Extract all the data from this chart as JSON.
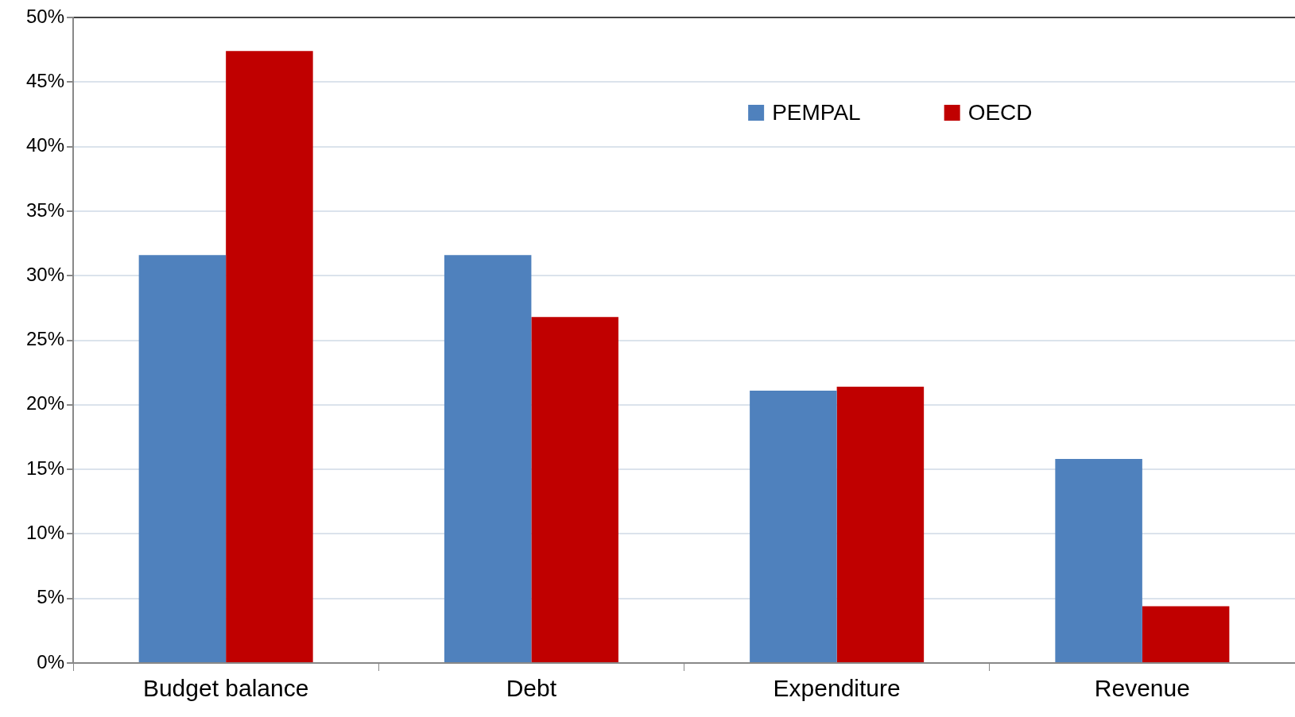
{
  "chart_data": {
    "type": "bar",
    "categories": [
      "Budget balance",
      "Debt",
      "Expenditure",
      "Revenue"
    ],
    "series": [
      {
        "name": "PEMPAL",
        "color": "#4f81bd",
        "values": [
          31.6,
          31.6,
          21.1,
          15.8
        ]
      },
      {
        "name": "OECD",
        "color": "#c00000",
        "values": [
          47.4,
          26.8,
          21.4,
          4.4
        ]
      }
    ],
    "ylim": [
      0,
      50
    ],
    "yticks": [
      {
        "value": 0,
        "label": "0%"
      },
      {
        "value": 5,
        "label": "5%"
      },
      {
        "value": 10,
        "label": "10%"
      },
      {
        "value": 15,
        "label": "15%"
      },
      {
        "value": 20,
        "label": "20%"
      },
      {
        "value": 25,
        "label": "25%"
      },
      {
        "value": 30,
        "label": "30%"
      },
      {
        "value": 35,
        "label": "35%"
      },
      {
        "value": 40,
        "label": "40%"
      },
      {
        "value": 45,
        "label": "45%"
      },
      {
        "value": 50,
        "label": "50%"
      }
    ],
    "grid": "y",
    "legend": "top right"
  }
}
